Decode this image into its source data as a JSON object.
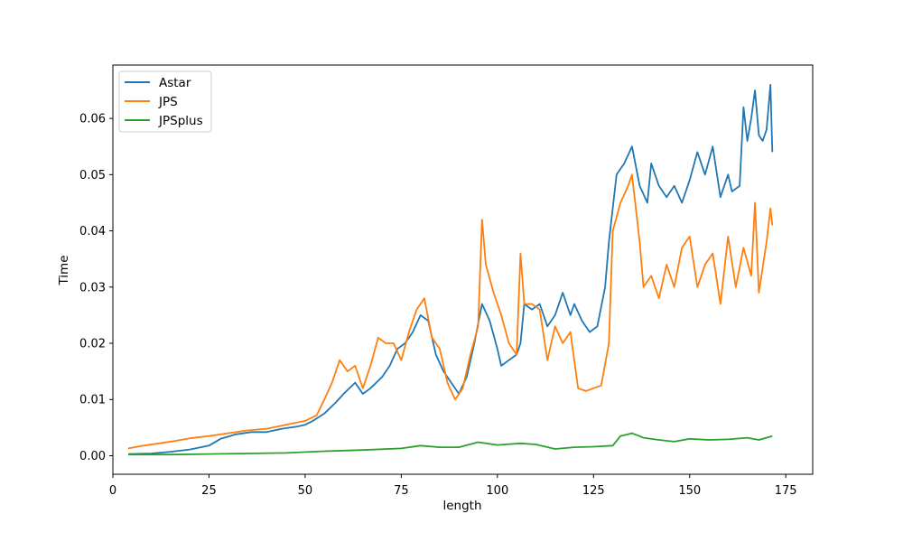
{
  "chart_data": {
    "type": "line",
    "title": "",
    "xlabel": "length",
    "ylabel": "Time",
    "xlim": [
      0,
      182
    ],
    "ylim": [
      -0.0033,
      0.0695
    ],
    "xticks": [
      0,
      25,
      50,
      75,
      100,
      125,
      150,
      175
    ],
    "xtick_labels": [
      "0",
      "25",
      "50",
      "75",
      "100",
      "125",
      "150",
      "175"
    ],
    "yticks": [
      0.0,
      0.01,
      0.02,
      0.03,
      0.04,
      0.05,
      0.06
    ],
    "ytick_labels": [
      "0.00",
      "0.01",
      "0.02",
      "0.03",
      "0.04",
      "0.05",
      "0.06"
    ],
    "grid": false,
    "legend_position": "top-left",
    "series": [
      {
        "name": "Astar",
        "color": "#1f77b4",
        "points": [
          [
            4,
            0.0003
          ],
          [
            10,
            0.0004
          ],
          [
            15,
            0.0007
          ],
          [
            20,
            0.0011
          ],
          [
            25,
            0.0018
          ],
          [
            28,
            0.003
          ],
          [
            32,
            0.0038
          ],
          [
            36,
            0.0042
          ],
          [
            40,
            0.0042
          ],
          [
            44,
            0.0048
          ],
          [
            48,
            0.0052
          ],
          [
            50,
            0.0055
          ],
          [
            52,
            0.0062
          ],
          [
            55,
            0.0075
          ],
          [
            58,
            0.0095
          ],
          [
            60,
            0.011
          ],
          [
            63,
            0.013
          ],
          [
            65,
            0.011
          ],
          [
            67,
            0.012
          ],
          [
            70,
            0.014
          ],
          [
            72,
            0.016
          ],
          [
            74,
            0.019
          ],
          [
            76,
            0.02
          ],
          [
            78,
            0.022
          ],
          [
            80,
            0.025
          ],
          [
            82,
            0.024
          ],
          [
            84,
            0.018
          ],
          [
            86,
            0.015
          ],
          [
            88,
            0.013
          ],
          [
            90,
            0.011
          ],
          [
            92,
            0.014
          ],
          [
            94,
            0.02
          ],
          [
            96,
            0.027
          ],
          [
            98,
            0.024
          ],
          [
            100,
            0.019
          ],
          [
            101,
            0.016
          ],
          [
            103,
            0.017
          ],
          [
            105,
            0.018
          ],
          [
            106,
            0.02
          ],
          [
            107,
            0.027
          ],
          [
            109,
            0.026
          ],
          [
            111,
            0.027
          ],
          [
            113,
            0.023
          ],
          [
            115,
            0.025
          ],
          [
            117,
            0.029
          ],
          [
            119,
            0.025
          ],
          [
            120,
            0.027
          ],
          [
            122,
            0.024
          ],
          [
            124,
            0.022
          ],
          [
            126,
            0.023
          ],
          [
            128,
            0.03
          ],
          [
            129,
            0.038
          ],
          [
            131,
            0.05
          ],
          [
            133,
            0.052
          ],
          [
            135,
            0.055
          ],
          [
            137,
            0.048
          ],
          [
            139,
            0.045
          ],
          [
            140,
            0.052
          ],
          [
            142,
            0.048
          ],
          [
            144,
            0.046
          ],
          [
            146,
            0.048
          ],
          [
            148,
            0.045
          ],
          [
            150,
            0.049
          ],
          [
            152,
            0.054
          ],
          [
            154,
            0.05
          ],
          [
            156,
            0.055
          ],
          [
            158,
            0.046
          ],
          [
            160,
            0.05
          ],
          [
            161,
            0.047
          ],
          [
            163,
            0.048
          ],
          [
            164,
            0.062
          ],
          [
            165,
            0.056
          ],
          [
            166,
            0.06
          ],
          [
            167,
            0.065
          ],
          [
            168,
            0.057
          ],
          [
            169,
            0.056
          ],
          [
            170,
            0.058
          ],
          [
            171,
            0.066
          ],
          [
            171.5,
            0.054
          ]
        ]
      },
      {
        "name": "JPS",
        "color": "#ff7f0e",
        "points": [
          [
            4,
            0.0013
          ],
          [
            8,
            0.0018
          ],
          [
            12,
            0.0022
          ],
          [
            16,
            0.0026
          ],
          [
            20,
            0.0031
          ],
          [
            25,
            0.0035
          ],
          [
            30,
            0.004
          ],
          [
            35,
            0.0045
          ],
          [
            40,
            0.0048
          ],
          [
            45,
            0.0055
          ],
          [
            50,
            0.0062
          ],
          [
            53,
            0.0072
          ],
          [
            55,
            0.01
          ],
          [
            57,
            0.013
          ],
          [
            59,
            0.017
          ],
          [
            61,
            0.015
          ],
          [
            63,
            0.016
          ],
          [
            65,
            0.012
          ],
          [
            67,
            0.016
          ],
          [
            69,
            0.021
          ],
          [
            71,
            0.02
          ],
          [
            73,
            0.02
          ],
          [
            75,
            0.017
          ],
          [
            77,
            0.022
          ],
          [
            79,
            0.026
          ],
          [
            81,
            0.028
          ],
          [
            83,
            0.021
          ],
          [
            85,
            0.019
          ],
          [
            87,
            0.013
          ],
          [
            89,
            0.01
          ],
          [
            91,
            0.012
          ],
          [
            93,
            0.018
          ],
          [
            95,
            0.023
          ],
          [
            96,
            0.042
          ],
          [
            97,
            0.034
          ],
          [
            99,
            0.029
          ],
          [
            101,
            0.025
          ],
          [
            103,
            0.02
          ],
          [
            105,
            0.018
          ],
          [
            106,
            0.036
          ],
          [
            107,
            0.027
          ],
          [
            109,
            0.027
          ],
          [
            111,
            0.026
          ],
          [
            113,
            0.017
          ],
          [
            115,
            0.023
          ],
          [
            117,
            0.02
          ],
          [
            119,
            0.022
          ],
          [
            121,
            0.012
          ],
          [
            123,
            0.0115
          ],
          [
            125,
            0.012
          ],
          [
            127,
            0.0125
          ],
          [
            129,
            0.02
          ],
          [
            130,
            0.04
          ],
          [
            132,
            0.045
          ],
          [
            134,
            0.048
          ],
          [
            135,
            0.05
          ],
          [
            137,
            0.038
          ],
          [
            138,
            0.03
          ],
          [
            140,
            0.032
          ],
          [
            142,
            0.028
          ],
          [
            144,
            0.034
          ],
          [
            146,
            0.03
          ],
          [
            148,
            0.037
          ],
          [
            150,
            0.039
          ],
          [
            152,
            0.03
          ],
          [
            154,
            0.034
          ],
          [
            156,
            0.036
          ],
          [
            158,
            0.027
          ],
          [
            160,
            0.039
          ],
          [
            162,
            0.03
          ],
          [
            164,
            0.037
          ],
          [
            166,
            0.032
          ],
          [
            167,
            0.045
          ],
          [
            168,
            0.029
          ],
          [
            170,
            0.038
          ],
          [
            171,
            0.044
          ],
          [
            171.5,
            0.041
          ]
        ]
      },
      {
        "name": "JPSplus",
        "color": "#2ca02c",
        "points": [
          [
            4,
            0.0002
          ],
          [
            15,
            0.0002
          ],
          [
            25,
            0.0003
          ],
          [
            35,
            0.0004
          ],
          [
            45,
            0.0005
          ],
          [
            55,
            0.0008
          ],
          [
            65,
            0.001
          ],
          [
            75,
            0.0013
          ],
          [
            80,
            0.0018
          ],
          [
            85,
            0.0015
          ],
          [
            90,
            0.0015
          ],
          [
            95,
            0.0024
          ],
          [
            100,
            0.0019
          ],
          [
            106,
            0.0022
          ],
          [
            110,
            0.002
          ],
          [
            115,
            0.0012
          ],
          [
            120,
            0.0015
          ],
          [
            125,
            0.0016
          ],
          [
            130,
            0.0018
          ],
          [
            132,
            0.0035
          ],
          [
            135,
            0.004
          ],
          [
            138,
            0.0032
          ],
          [
            142,
            0.0028
          ],
          [
            146,
            0.0025
          ],
          [
            150,
            0.003
          ],
          [
            155,
            0.0028
          ],
          [
            160,
            0.0029
          ],
          [
            165,
            0.0032
          ],
          [
            168,
            0.0028
          ],
          [
            171.5,
            0.0035
          ]
        ]
      }
    ]
  }
}
